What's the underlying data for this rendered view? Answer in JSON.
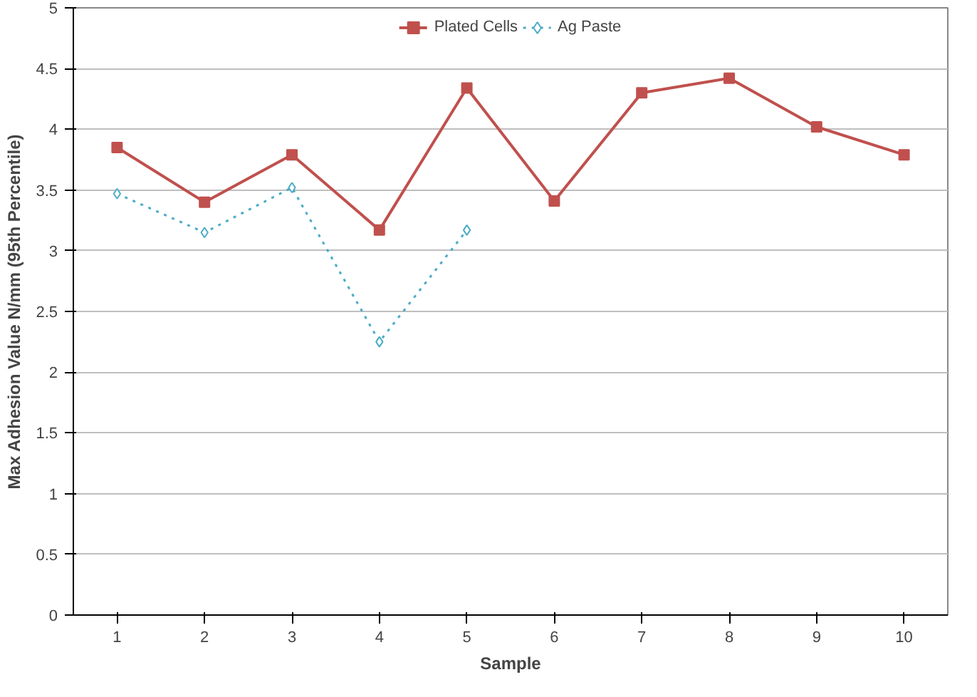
{
  "chart_data": {
    "type": "line",
    "xlabel": "Sample",
    "ylabel": "Max Adhesion Value N/mm (95th Percentile)",
    "categories": [
      "1",
      "2",
      "3",
      "4",
      "5",
      "6",
      "7",
      "8",
      "9",
      "10"
    ],
    "series": [
      {
        "name": "Plated Cells",
        "color": "#c0504d",
        "marker": "square",
        "line_style": "solid",
        "values": [
          3.85,
          3.4,
          3.79,
          3.17,
          4.34,
          3.41,
          4.3,
          4.42,
          4.02,
          3.79
        ]
      },
      {
        "name": "Ag Paste",
        "color": "#4bacc6",
        "marker": "diamond",
        "line_style": "dotted",
        "values": [
          3.47,
          3.15,
          3.52,
          2.25,
          3.17,
          null,
          null,
          null,
          null,
          null
        ]
      }
    ],
    "ylim": [
      0,
      5
    ],
    "yticks": [
      0,
      0.5,
      1,
      1.5,
      2,
      2.5,
      3,
      3.5,
      4,
      4.5,
      5
    ],
    "grid": "y",
    "legend": "top"
  }
}
